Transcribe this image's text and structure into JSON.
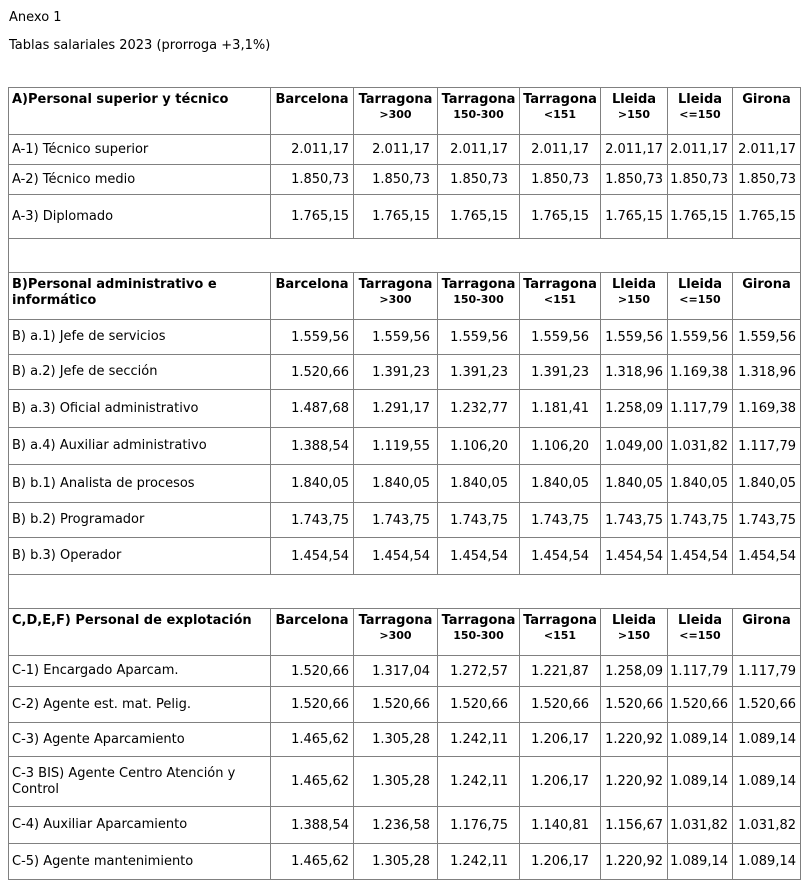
{
  "doc": {
    "line1": "Anexo 1",
    "line2": "Tablas salariales 2023 (prorroga +3,1%)"
  },
  "table": {
    "border_color": "#808080",
    "text_color": "#000000",
    "columns": [
      {
        "name": "Barcelona",
        "sub": ""
      },
      {
        "name": "Tarragona",
        "sub": ">300"
      },
      {
        "name": "Tarragona",
        "sub": "150-300"
      },
      {
        "name": "Tarragona",
        "sub": "<151"
      },
      {
        "name": "Lleida",
        "sub": ">150"
      },
      {
        "name": "Lleida",
        "sub": "<=150"
      },
      {
        "name": "Girona",
        "sub": ""
      }
    ],
    "sections": [
      {
        "title": "A)Personal superior y técnico",
        "rows": [
          {
            "label": "A-1) Técnico superior",
            "values": [
              "2.011,17",
              "2.011,17",
              "2.011,17",
              "2.011,17",
              "2.011,17",
              "2.011,17",
              "2.011,17"
            ]
          },
          {
            "label": "A-2) Técnico medio",
            "values": [
              "1.850,73",
              "1.850,73",
              "1.850,73",
              "1.850,73",
              "1.850,73",
              "1.850,73",
              "1.850,73"
            ]
          },
          {
            "label": "A-3) Diplomado",
            "values": [
              "1.765,15",
              "1.765,15",
              "1.765,15",
              "1.765,15",
              "1.765,15",
              "1.765,15",
              "1.765,15"
            ]
          }
        ]
      },
      {
        "title": "B)Personal administrativo e informático",
        "rows": [
          {
            "label": "B) a.1) Jefe de servicios",
            "values": [
              "1.559,56",
              "1.559,56",
              "1.559,56",
              "1.559,56",
              "1.559,56",
              "1.559,56",
              "1.559,56"
            ]
          },
          {
            "label": "B) a.2) Jefe de sección",
            "values": [
              "1.520,66",
              "1.391,23",
              "1.391,23",
              "1.391,23",
              "1.318,96",
              "1.169,38",
              "1.318,96"
            ]
          },
          {
            "label": "B) a.3) Oficial administrativo",
            "values": [
              "1.487,68",
              "1.291,17",
              "1.232,77",
              "1.181,41",
              "1.258,09",
              "1.117,79",
              "1.169,38"
            ]
          },
          {
            "label": "B) a.4) Auxiliar administrativo",
            "values": [
              "1.388,54",
              "1.119,55",
              "1.106,20",
              "1.106,20",
              "1.049,00",
              "1.031,82",
              "1.117,79"
            ]
          },
          {
            "label": "B) b.1) Analista de procesos",
            "values": [
              "1.840,05",
              "1.840,05",
              "1.840,05",
              "1.840,05",
              "1.840,05",
              "1.840,05",
              "1.840,05"
            ]
          },
          {
            "label": "B) b.2) Programador",
            "values": [
              "1.743,75",
              "1.743,75",
              "1.743,75",
              "1.743,75",
              "1.743,75",
              "1.743,75",
              "1.743,75"
            ]
          },
          {
            "label": "B) b.3) Operador",
            "values": [
              "1.454,54",
              "1.454,54",
              "1.454,54",
              "1.454,54",
              "1.454,54",
              "1.454,54",
              "1.454,54"
            ]
          }
        ]
      },
      {
        "title": "C,D,E,F) Personal de explotación",
        "rows": [
          {
            "label": "C-1) Encargado Aparcam.",
            "values": [
              "1.520,66",
              "1.317,04",
              "1.272,57",
              "1.221,87",
              "1.258,09",
              "1.117,79",
              "1.117,79"
            ]
          },
          {
            "label": "C-2) Agente est. mat. Pelig.",
            "values": [
              "1.520,66",
              "1.520,66",
              "1.520,66",
              "1.520,66",
              "1.520,66",
              "1.520,66",
              "1.520,66"
            ]
          },
          {
            "label": "C-3) Agente Aparcamiento",
            "values": [
              "1.465,62",
              "1.305,28",
              "1.242,11",
              "1.206,17",
              "1.220,92",
              "1.089,14",
              "1.089,14"
            ]
          },
          {
            "label": "C-3 BIS) Agente Centro Atención y Control",
            "values": [
              "1.465,62",
              "1.305,28",
              "1.242,11",
              "1.206,17",
              "1.220,92",
              "1.089,14",
              "1.089,14"
            ]
          },
          {
            "label": "C-4) Auxiliar Aparcamiento",
            "values": [
              "1.388,54",
              "1.236,58",
              "1.176,75",
              "1.140,81",
              "1.156,67",
              "1.031,82",
              "1.031,82"
            ]
          },
          {
            "label": "C-5) Agente mantenimiento",
            "values": [
              "1.465,62",
              "1.305,28",
              "1.242,11",
              "1.206,17",
              "1.220,92",
              "1.089,14",
              "1.089,14"
            ]
          }
        ]
      }
    ]
  }
}
